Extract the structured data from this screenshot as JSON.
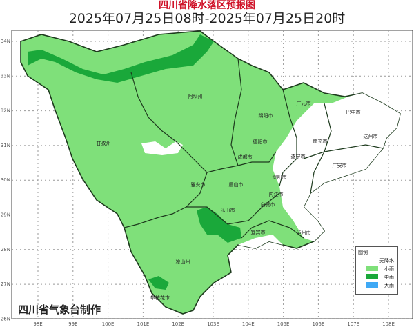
{
  "title": "四川省降水落区预报图",
  "subtitle": "2025年07月25日08时-2025年07月25日20时",
  "credit": "四川省气象台制作",
  "axes": {
    "longitude_ticks": [
      "98E",
      "99E",
      "100E",
      "101E",
      "102E",
      "103E",
      "104E",
      "105E",
      "106E",
      "107E",
      "108E"
    ],
    "latitude_ticks": [
      "34N",
      "33N",
      "32N",
      "31N",
      "30N",
      "29N",
      "28N",
      "27N",
      "26N"
    ]
  },
  "legend": {
    "title": "图例",
    "items": [
      {
        "label": "无降水",
        "color": "#ffffff"
      },
      {
        "label": "小雨",
        "color": "#7fe07a"
      },
      {
        "label": "中雨",
        "color": "#1aa83a"
      },
      {
        "label": "大雨",
        "color": "#3fa9f5"
      }
    ]
  },
  "cities": [
    "阿坝州",
    "甘孜州",
    "绵阳市",
    "德阳市",
    "成都市",
    "广元市",
    "巴中市",
    "达州市",
    "南充市",
    "遂宁市",
    "广安市",
    "资阳市",
    "眉山市",
    "雅安市",
    "乐山市",
    "内江市",
    "自贡市",
    "宜宾市",
    "泸州市",
    "凉山州",
    "攀枝花市"
  ]
}
